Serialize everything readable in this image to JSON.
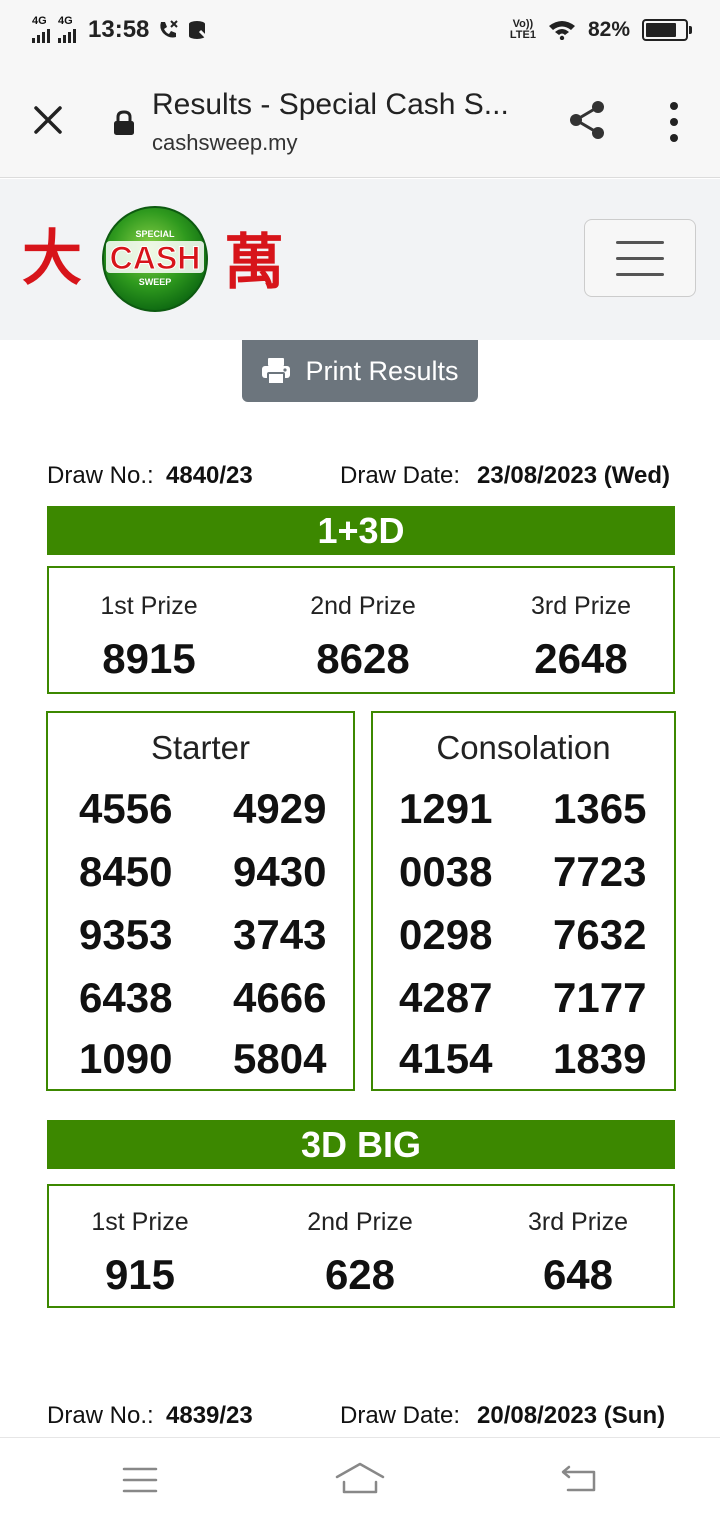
{
  "status_bar": {
    "network1": "4G",
    "network2": "4G",
    "time": "13:58",
    "volte_top": "Vo))",
    "volte_bottom": "LTE1",
    "battery_pct": "82%",
    "battery_level": 0.82
  },
  "browser": {
    "title": "Results - Special Cash S...",
    "url": "cashsweep.my"
  },
  "logo": {
    "left_char": "大",
    "right_char": "萬",
    "badge_top": "SPECIAL",
    "badge_main": "CASH",
    "badge_bottom": "SWEEP"
  },
  "print_label": "Print Results",
  "draw1": {
    "draw_no_label": "Draw No.:",
    "draw_no": "4840/23",
    "draw_date_label": "Draw Date:",
    "draw_date": "23/08/2023 (Wed)",
    "section1_title": "1+3D",
    "prizes_4d": [
      {
        "label": "1st Prize",
        "value": "8915"
      },
      {
        "label": "2nd Prize",
        "value": "8628"
      },
      {
        "label": "3rd Prize",
        "value": "2648"
      }
    ],
    "starter_title": "Starter",
    "starter": [
      "4556",
      "4929",
      "8450",
      "9430",
      "9353",
      "3743",
      "6438",
      "4666",
      "1090",
      "5804"
    ],
    "consolation_title": "Consolation",
    "consolation": [
      "1291",
      "1365",
      "0038",
      "7723",
      "0298",
      "7632",
      "4287",
      "7177",
      "4154",
      "1839"
    ],
    "section2_title": "3D BIG",
    "prizes_3d": [
      {
        "label": "1st Prize",
        "value": "915"
      },
      {
        "label": "2nd Prize",
        "value": "628"
      },
      {
        "label": "3rd Prize",
        "value": "648"
      }
    ]
  },
  "draw2": {
    "draw_no_label": "Draw No.:",
    "draw_no": "4839/23",
    "draw_date_label": "Draw Date:",
    "draw_date": "20/08/2023 (Sun)"
  },
  "colors": {
    "accent_green": "#3c8800",
    "print_button": "#6c757d",
    "logo_red": "#d7141a"
  }
}
